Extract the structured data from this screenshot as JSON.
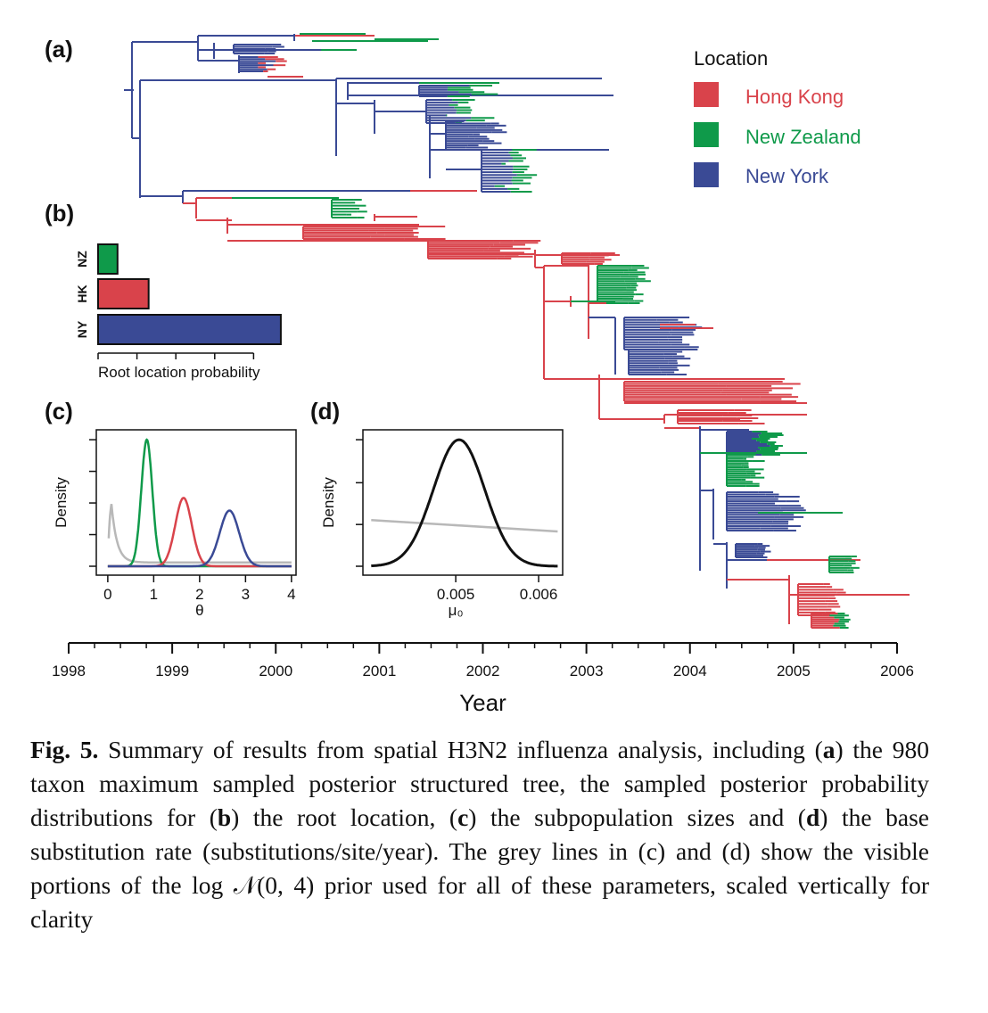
{
  "colors": {
    "hong_kong": "#d9434b",
    "new_zealand": "#0f9a4a",
    "new_york": "#3a4a95",
    "prior": "#b8b8b8",
    "axis": "#111111"
  },
  "panels": {
    "a": "(a)",
    "b": "(b)",
    "c": "(c)",
    "d": "(d)"
  },
  "legend": {
    "title": "Location",
    "items": [
      {
        "label": "Hong Kong",
        "color": "#d9434b"
      },
      {
        "label": "New Zealand",
        "color": "#0f9a4a"
      },
      {
        "label": "New York",
        "color": "#3a4a95"
      }
    ]
  },
  "caption": {
    "fig_label": "Fig. 5.",
    "segments": [
      {
        "text": " Summary of results from spatial H3N2 influenza analysis, including (",
        "bold": false
      },
      {
        "text": "a",
        "bold": true
      },
      {
        "text": ") the 980 taxon maximum sampled posterior structured tree, the sampled posterior probability distributions for (",
        "bold": false
      },
      {
        "text": "b",
        "bold": true
      },
      {
        "text": ") the root location, (",
        "bold": false
      },
      {
        "text": "c",
        "bold": true
      },
      {
        "text": ") the subpopulation sizes and (",
        "bold": false
      },
      {
        "text": "d",
        "bold": true
      },
      {
        "text": ") the base substitution rate (substitutions/site/year). The grey lines in (c) and (d) show the visible portions of the log ",
        "bold": false
      },
      {
        "text": "𝒩",
        "bold": false
      },
      {
        "text": "(0, 4) prior used for all of these parameters, scaled vertically for clarity",
        "bold": false
      }
    ]
  },
  "chart_data": [
    {
      "type": "tree",
      "panel": "(a)",
      "description_axis": "Year",
      "xlabel": "Year",
      "xlim": [
        1998,
        2006
      ],
      "x_ticks": [
        1998,
        1999,
        2000,
        2001,
        2002,
        2003,
        2004,
        2005,
        2006
      ],
      "locations": [
        "Hong Kong",
        "New Zealand",
        "New York"
      ],
      "taxa": 980
    },
    {
      "type": "bar",
      "panel": "(b)",
      "orientation": "horizontal",
      "categories": [
        "NZ",
        "HK",
        "NY"
      ],
      "values": [
        0.1,
        0.26,
        0.94
      ],
      "colors": [
        "#0f9a4a",
        "#d9434b",
        "#3a4a95"
      ],
      "xlabel": "Root location probability",
      "xlim": [
        0,
        1.0
      ],
      "x_ticks": [
        0,
        0.4,
        0.8
      ]
    },
    {
      "type": "line",
      "panel": "(c)",
      "xlabel": "θ",
      "ylabel": "Density",
      "xlim": [
        -0.25,
        4.1
      ],
      "x_ticks": [
        0,
        1,
        2,
        3,
        4
      ],
      "ylim": [
        0,
        1.05
      ],
      "y_ticks": [
        0,
        0.25,
        0.5,
        0.75,
        1.0
      ],
      "series": [
        {
          "name": "New Zealand",
          "color": "#0f9a4a",
          "mean": 0.85,
          "sd": 0.12,
          "peak": 1.0
        },
        {
          "name": "Hong Kong",
          "color": "#d9434b",
          "mean": 1.65,
          "sd": 0.18,
          "peak": 0.54
        },
        {
          "name": "New York",
          "color": "#3a4a95",
          "mean": 2.65,
          "sd": 0.21,
          "peak": 0.44
        },
        {
          "name": "prior",
          "color": "#b8b8b8",
          "kind": "lognormal_prior"
        }
      ]
    },
    {
      "type": "line",
      "panel": "(d)",
      "xlabel": "μ₀",
      "ylabel": "Density",
      "xlim": [
        0.00388,
        0.00629
      ],
      "x_ticks": [
        0.005,
        0.006
      ],
      "x_tick_labels": [
        "0.005",
        "0.006"
      ],
      "ylim": [
        0,
        1.05
      ],
      "y_ticks": [
        0,
        0.33,
        0.66,
        1.0
      ],
      "series": [
        {
          "name": "posterior",
          "color": "#111111",
          "mean": 0.00504,
          "sd": 0.00031,
          "peak": 1.0
        },
        {
          "name": "prior",
          "color": "#b8b8b8",
          "kind": "linear",
          "start": 0.365,
          "end": 0.275
        }
      ]
    }
  ]
}
